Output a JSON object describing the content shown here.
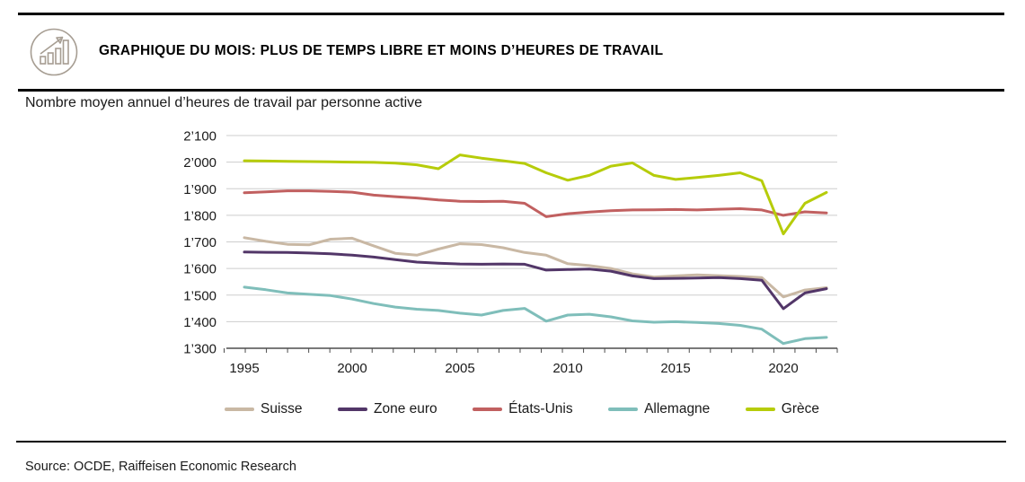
{
  "header": {
    "title": "GRAPHIQUE DU MOIS: PLUS DE TEMPS LIBRE ET MOINS D’HEURES DE TRAVAIL",
    "icon": "bar-chart-growth-icon"
  },
  "subtitle": "Nombre moyen annuel d’heures de travail par personne active",
  "footer": {
    "source": "Source: OCDE, Raiffeisen Economic Research"
  },
  "colors": {
    "grid": "#cdcdcd",
    "axis": "#4d4d4d",
    "rule": "#000000",
    "icon": "#a69d92"
  },
  "chart_data": {
    "type": "line",
    "title": "Nombre moyen annuel d’heures de travail par personne active",
    "xlabel": "",
    "ylabel": "",
    "grid": true,
    "legend_position": "bottom",
    "ylim": [
      1300,
      2100
    ],
    "ytick_step": 100,
    "ytick_labels": [
      "2’100",
      "2’000",
      "1’900",
      "1’800",
      "1’700",
      "1’600",
      "1’500",
      "1’400",
      "1’300"
    ],
    "xtick_years": [
      1995,
      2000,
      2005,
      2010,
      2015,
      2020
    ],
    "xtick_labels": [
      "1995",
      "2000",
      "2005",
      "2010",
      "2015",
      "2020"
    ],
    "x": [
      1995,
      1996,
      1997,
      1998,
      1999,
      2000,
      2001,
      2002,
      2003,
      2004,
      2005,
      2006,
      2007,
      2008,
      2009,
      2010,
      2011,
      2012,
      2013,
      2014,
      2015,
      2016,
      2017,
      2018,
      2019,
      2020,
      2021,
      2022
    ],
    "series": [
      {
        "name": "Suisse",
        "color": "#c9b8a4",
        "values": [
          1716,
          1702,
          1691,
          1689,
          1710,
          1714,
          1685,
          1657,
          1650,
          1673,
          1693,
          1690,
          1678,
          1660,
          1650,
          1618,
          1611,
          1600,
          1580,
          1568,
          1572,
          1576,
          1573,
          1570,
          1566,
          1493,
          1519,
          1528
        ]
      },
      {
        "name": "Zone euro",
        "color": "#523668",
        "values": [
          1662,
          1661,
          1660,
          1658,
          1655,
          1650,
          1643,
          1633,
          1624,
          1620,
          1617,
          1616,
          1617,
          1616,
          1594,
          1596,
          1598,
          1590,
          1572,
          1562,
          1563,
          1564,
          1566,
          1562,
          1556,
          1449,
          1508,
          1524
        ]
      },
      {
        "name": "États-Unis",
        "color": "#c16060",
        "values": [
          1885,
          1888,
          1892,
          1892,
          1890,
          1887,
          1876,
          1870,
          1865,
          1858,
          1853,
          1852,
          1853,
          1845,
          1795,
          1806,
          1812,
          1817,
          1820,
          1821,
          1822,
          1820,
          1823,
          1825,
          1820,
          1800,
          1813,
          1809
        ]
      },
      {
        "name": "Allemagne",
        "color": "#7fbeba",
        "values": [
          1530,
          1520,
          1508,
          1503,
          1498,
          1485,
          1468,
          1455,
          1447,
          1442,
          1432,
          1425,
          1442,
          1450,
          1402,
          1425,
          1428,
          1418,
          1403,
          1398,
          1400,
          1397,
          1393,
          1386,
          1372,
          1318,
          1336,
          1341
        ]
      },
      {
        "name": "Grèce",
        "color": "#b6cc0a",
        "values": [
          2005,
          2004,
          2003,
          2002,
          2001,
          2000,
          1999,
          1996,
          1990,
          1975,
          2027,
          2015,
          2005,
          1995,
          1960,
          1932,
          1950,
          1985,
          1997,
          1950,
          1935,
          1942,
          1950,
          1960,
          1930,
          1730,
          1845,
          1886
        ]
      }
    ]
  }
}
